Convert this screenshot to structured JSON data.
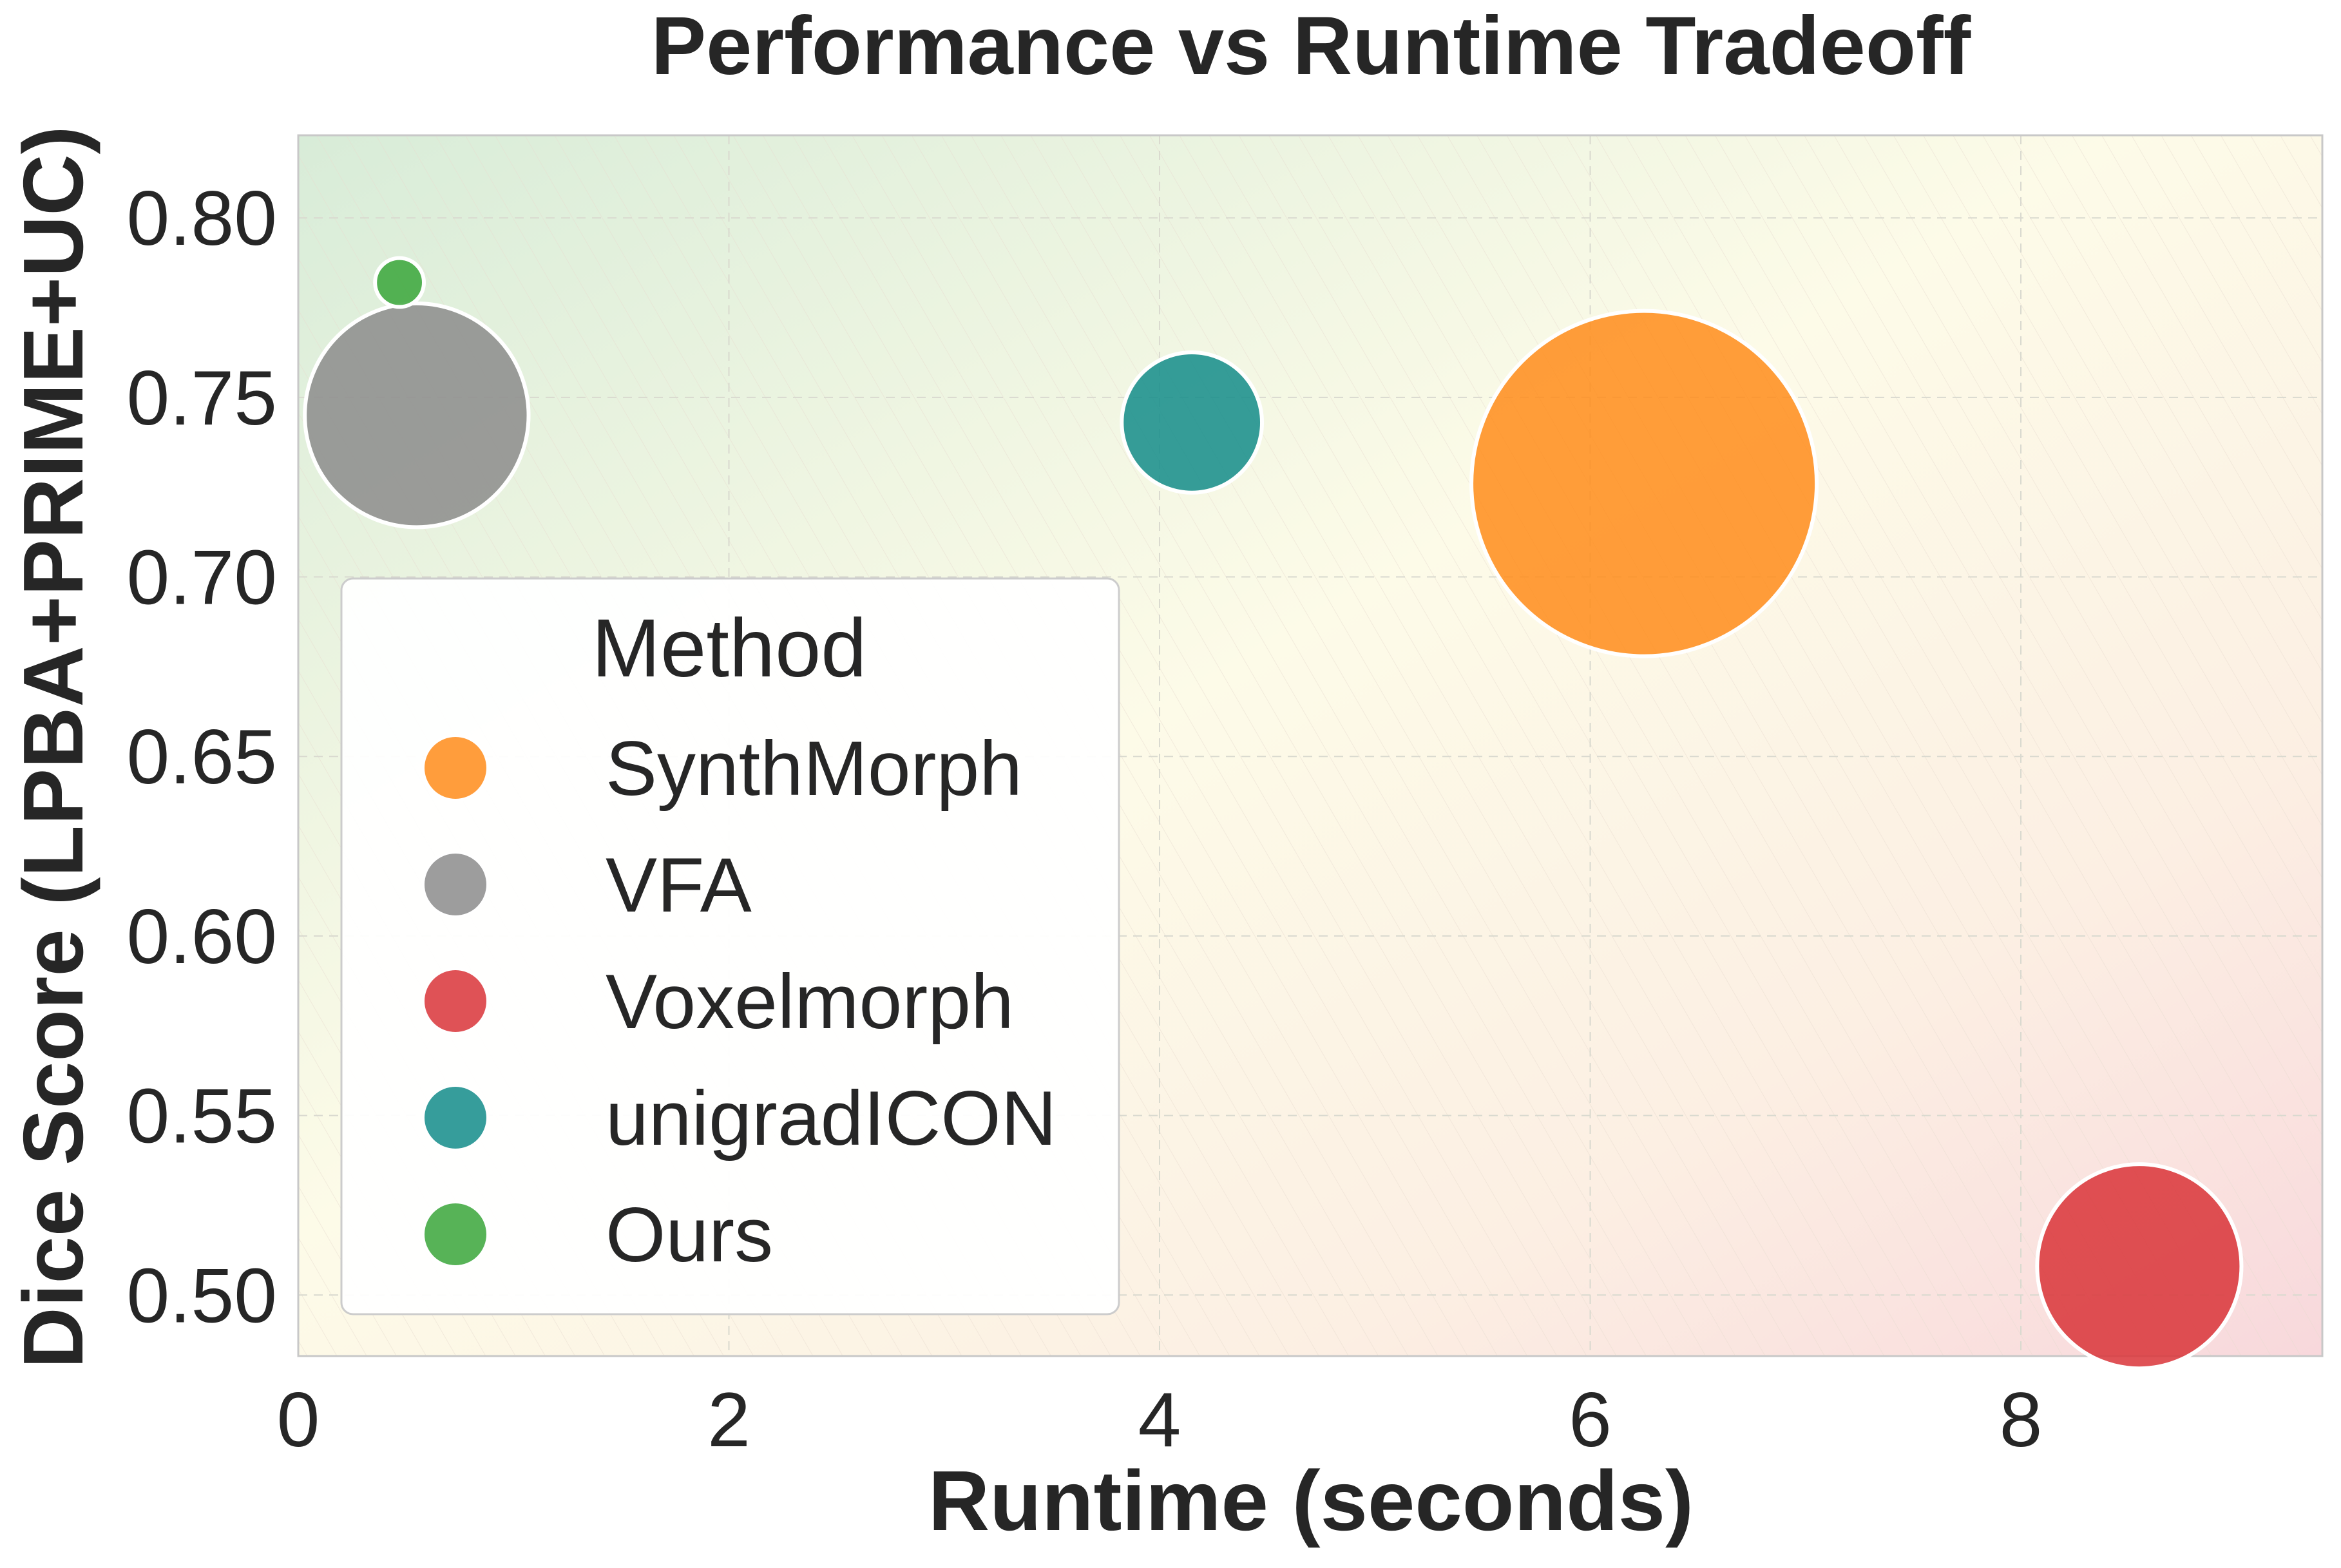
{
  "chart_data": {
    "type": "scatter",
    "title": "Performance vs Runtime Tradeoff",
    "xlabel": "Runtime (seconds)",
    "ylabel": "Dice Score (LPBA+PRIME+UC)",
    "xlim": [
      0,
      9.4
    ],
    "ylim": [
      0.483,
      0.823
    ],
    "xticks": [
      0,
      2,
      4,
      6,
      8
    ],
    "xtick_labels": [
      "0",
      "2",
      "4",
      "6",
      "8"
    ],
    "yticks": [
      0.5,
      0.55,
      0.6,
      0.65,
      0.7,
      0.75,
      0.8
    ],
    "ytick_labels": [
      "0.50",
      "0.55",
      "0.60",
      "0.65",
      "0.70",
      "0.75",
      "0.80"
    ],
    "grid": true,
    "legend": {
      "title": "Method",
      "placement": "lower-left",
      "entries": [
        "SynthMorph",
        "VFA",
        "Voxelmorph",
        "unigradICON",
        "Ours"
      ]
    },
    "series": [
      {
        "name": "SynthMorph",
        "x": 6.25,
        "y": 0.726,
        "relative_size": 1.0,
        "color": "#ff8c1a"
      },
      {
        "name": "VFA",
        "x": 0.55,
        "y": 0.745,
        "relative_size": 0.42,
        "color": "#8c8c8c"
      },
      {
        "name": "Voxelmorph",
        "x": 8.55,
        "y": 0.508,
        "relative_size": 0.35,
        "color": "#d93438"
      },
      {
        "name": "unigradICON",
        "x": 4.15,
        "y": 0.743,
        "relative_size": 0.165,
        "color": "#138c89"
      },
      {
        "name": "Ours",
        "x": 0.47,
        "y": 0.782,
        "relative_size": 0.02,
        "color": "#3aa639"
      }
    ]
  }
}
